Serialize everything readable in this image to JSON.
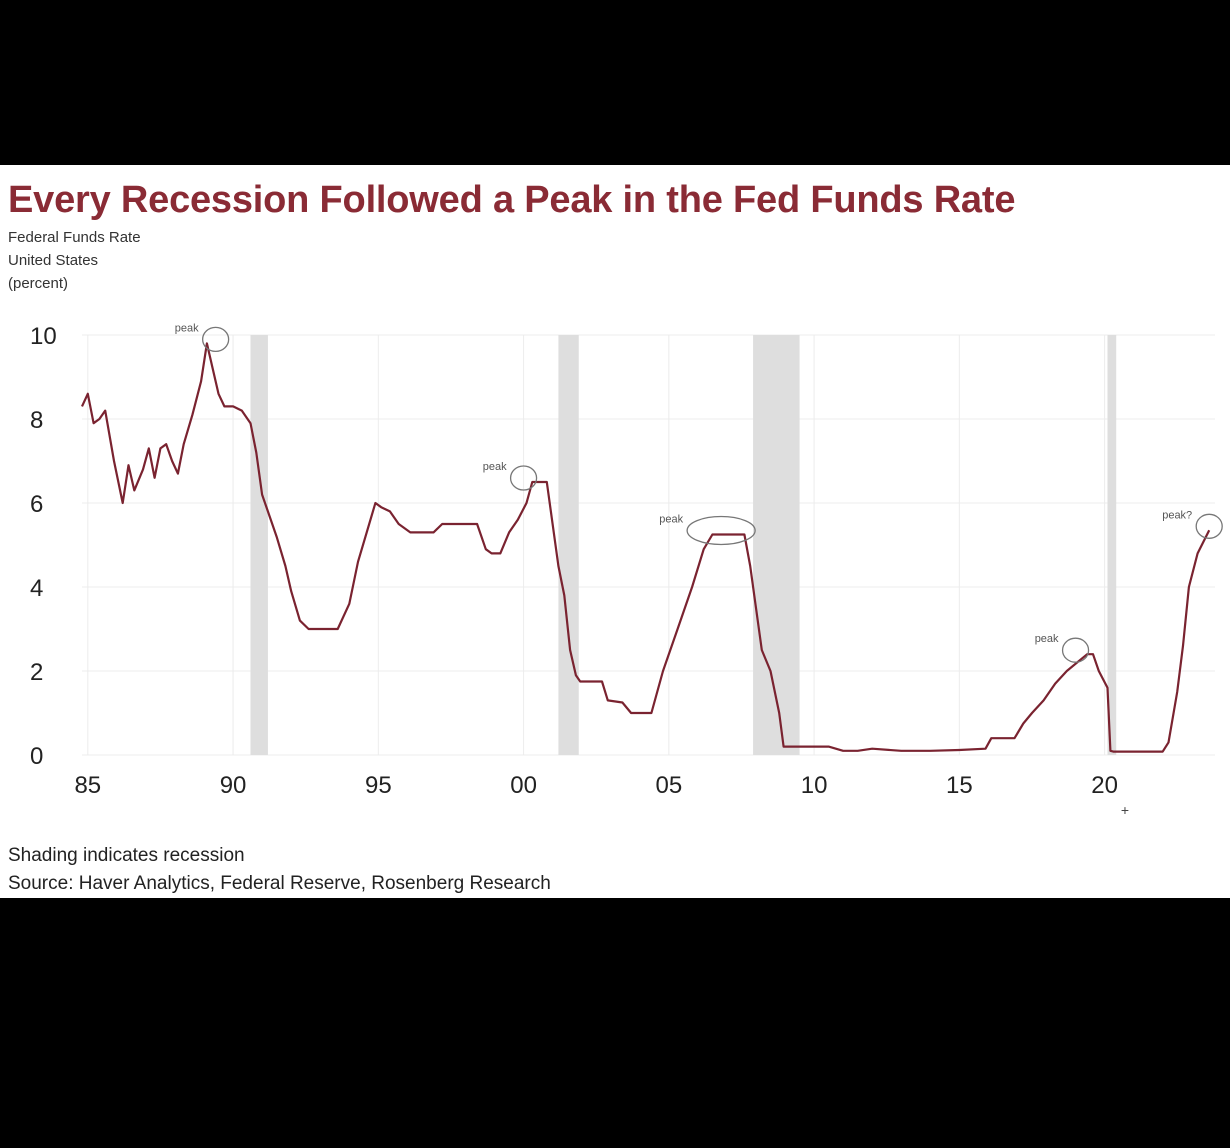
{
  "header": {
    "title": "Every Recession Followed a Peak in the Fed Funds Rate",
    "subtitle_lines": [
      "Federal Funds Rate",
      "United States",
      "(percent)"
    ]
  },
  "footer": {
    "note": "Shading indicates recession",
    "source": "Source: Haver Analytics, Federal Reserve, Rosenberg Research"
  },
  "colors": {
    "line": "#7a2330",
    "title": "#8a2b35",
    "recession": "#dedede",
    "grid": "#ececec"
  },
  "chart_data": {
    "type": "line",
    "title": "Every Recession Followed a Peak in the Fed Funds Rate",
    "ylabel": "Federal Funds Rate, United States (percent)",
    "xlim": [
      1984.8,
      2023.8
    ],
    "ylim": [
      0,
      10
    ],
    "x_ticks": [
      1985,
      1990,
      1995,
      2000,
      2005,
      2010,
      2015,
      2020
    ],
    "x_tick_labels": [
      "85",
      "90",
      "95",
      "00",
      "05",
      "10",
      "15",
      "20"
    ],
    "y_ticks": [
      0,
      2,
      4,
      6,
      8,
      10
    ],
    "y_tick_labels": [
      "0",
      "2",
      "4",
      "6",
      "8",
      "10"
    ],
    "extra_marker": "+",
    "recessions": [
      [
        1990.6,
        1991.2
      ],
      [
        2001.2,
        2001.9
      ],
      [
        2007.9,
        2009.5
      ],
      [
        2020.1,
        2020.4
      ]
    ],
    "annotations": [
      {
        "label": "peak",
        "x": 1989.4,
        "y": 9.8
      },
      {
        "label": "peak",
        "x": 2000.0,
        "y": 6.5
      },
      {
        "label": "peak",
        "x": 2006.8,
        "y": 5.25
      },
      {
        "label": "peak",
        "x": 2019.0,
        "y": 2.4
      },
      {
        "label": "peak?",
        "x": 2023.6,
        "y": 5.35
      }
    ],
    "series": [
      {
        "name": "Federal Funds Rate",
        "x": [
          1984.8,
          1985.0,
          1985.2,
          1985.4,
          1985.6,
          1985.9,
          1986.2,
          1986.4,
          1986.6,
          1986.9,
          1987.1,
          1987.3,
          1987.5,
          1987.7,
          1987.9,
          1988.1,
          1988.3,
          1988.6,
          1988.9,
          1989.1,
          1989.3,
          1989.5,
          1989.7,
          1990.0,
          1990.3,
          1990.6,
          1990.8,
          1991.0,
          1991.2,
          1991.5,
          1991.8,
          1992.0,
          1992.3,
          1992.6,
          1992.9,
          1993.2,
          1993.6,
          1994.0,
          1994.3,
          1994.6,
          1994.9,
          1995.1,
          1995.4,
          1995.7,
          1996.1,
          1996.5,
          1996.9,
          1997.2,
          1997.6,
          1998.0,
          1998.4,
          1998.7,
          1998.9,
          1999.2,
          1999.5,
          1999.8,
          2000.1,
          2000.3,
          2000.5,
          2000.8,
          2001.0,
          2001.2,
          2001.4,
          2001.6,
          2001.8,
          2001.95,
          2002.3,
          2002.7,
          2002.9,
          2003.4,
          2003.7,
          2004.4,
          2004.8,
          2005.3,
          2005.8,
          2006.2,
          2006.5,
          2007.1,
          2007.6,
          2007.8,
          2008.0,
          2008.2,
          2008.5,
          2008.8,
          2008.95,
          2009.5,
          2010.5,
          2011.0,
          2011.5,
          2012.0,
          2013.0,
          2014.0,
          2015.0,
          2015.9,
          2016.1,
          2016.9,
          2017.2,
          2017.5,
          2017.9,
          2018.3,
          2018.7,
          2019.4,
          2019.6,
          2019.8,
          2020.1,
          2020.2,
          2020.3,
          2021.0,
          2021.5,
          2022.0,
          2022.2,
          2022.5,
          2022.7,
          2022.9,
          2023.2,
          2023.6
        ],
        "y": [
          8.3,
          8.6,
          7.9,
          8.0,
          8.2,
          7.0,
          6.0,
          6.9,
          6.3,
          6.8,
          7.3,
          6.6,
          7.3,
          7.4,
          7.0,
          6.7,
          7.4,
          8.1,
          8.9,
          9.8,
          9.2,
          8.6,
          8.3,
          8.3,
          8.2,
          7.9,
          7.2,
          6.2,
          5.8,
          5.2,
          4.5,
          3.9,
          3.2,
          3.0,
          3.0,
          3.0,
          3.0,
          3.6,
          4.6,
          5.3,
          6.0,
          5.9,
          5.8,
          5.5,
          5.3,
          5.3,
          5.3,
          5.5,
          5.5,
          5.5,
          5.5,
          4.9,
          4.8,
          4.8,
          5.3,
          5.6,
          6.0,
          6.5,
          6.5,
          6.5,
          5.5,
          4.5,
          3.8,
          2.5,
          1.9,
          1.75,
          1.75,
          1.75,
          1.3,
          1.25,
          1.0,
          1.0,
          2.0,
          3.0,
          4.0,
          4.9,
          5.25,
          5.25,
          5.25,
          4.5,
          3.5,
          2.5,
          2.0,
          1.0,
          0.2,
          0.2,
          0.2,
          0.1,
          0.1,
          0.15,
          0.1,
          0.1,
          0.12,
          0.15,
          0.4,
          0.4,
          0.75,
          1.0,
          1.3,
          1.7,
          2.0,
          2.4,
          2.4,
          2.0,
          1.6,
          0.1,
          0.08,
          0.08,
          0.08,
          0.08,
          0.3,
          1.5,
          2.6,
          4.0,
          4.8,
          5.35
        ]
      }
    ]
  }
}
